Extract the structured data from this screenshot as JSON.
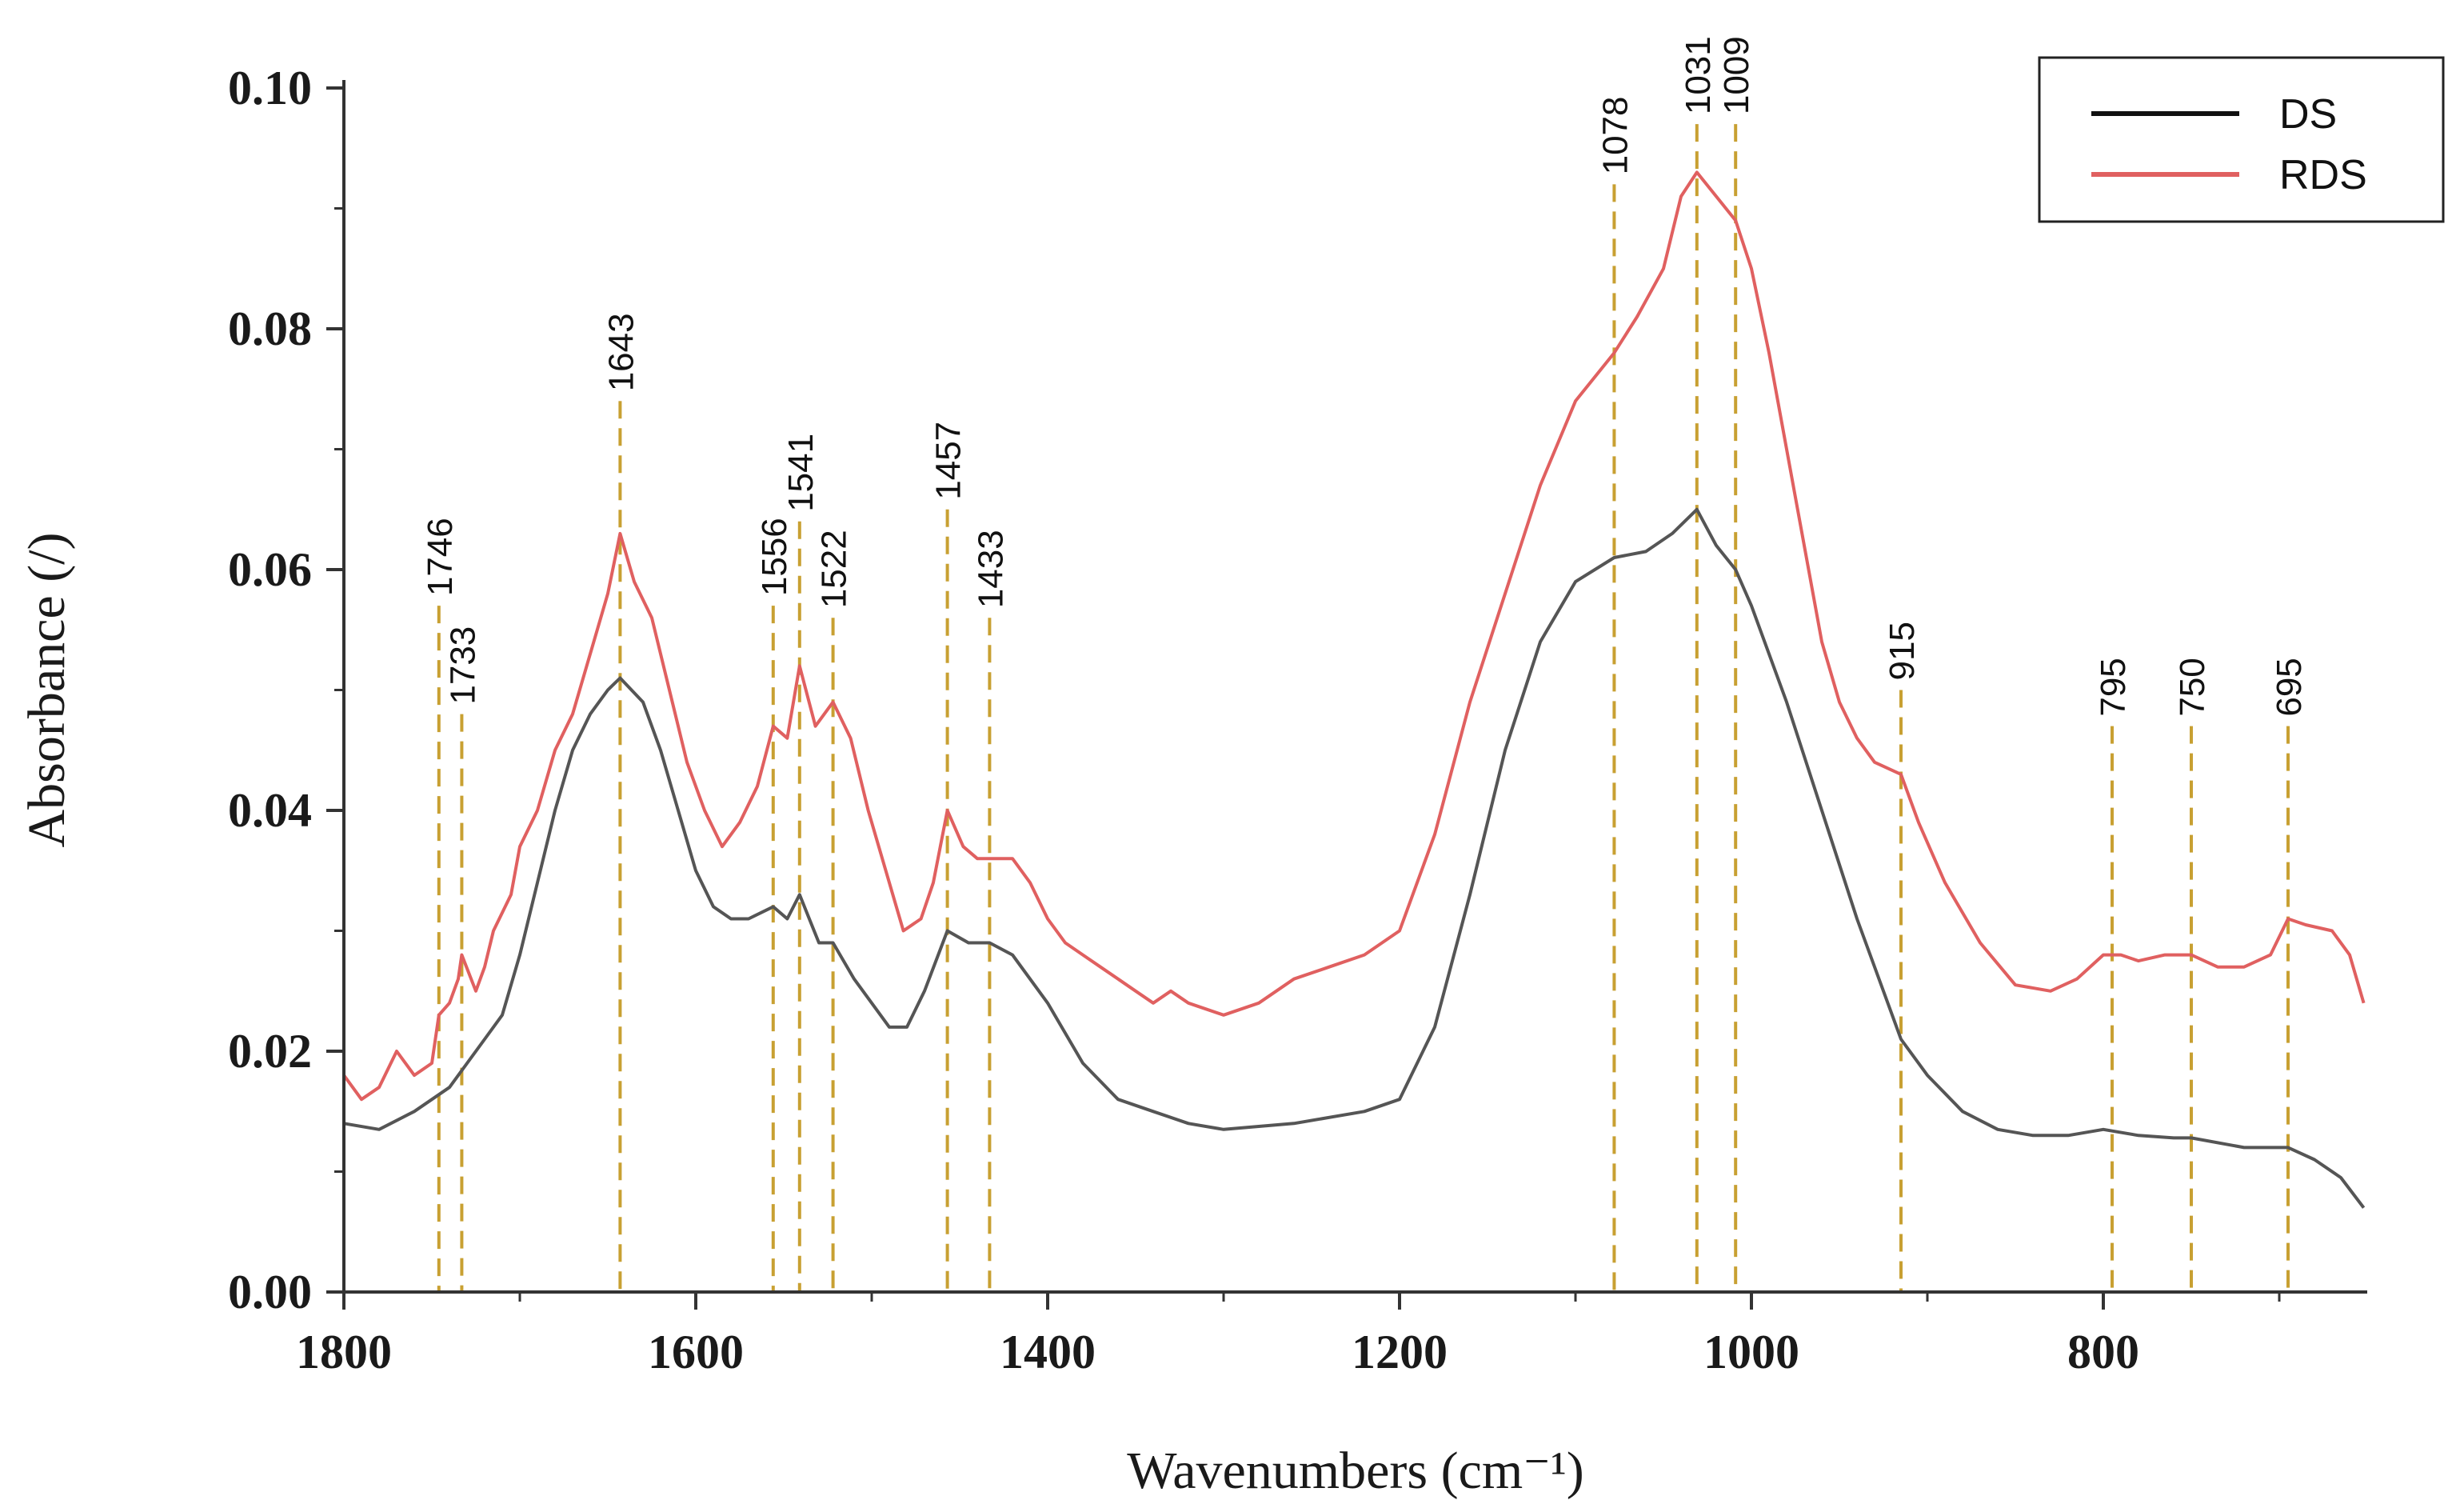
{
  "chart_data": {
    "type": "line",
    "title": "",
    "xlabel": "Wavenumbers (cm⁻¹)",
    "ylabel": "Absorbance (/)",
    "xlim": [
      1800,
      650
    ],
    "ylim": [
      0,
      0.1
    ],
    "x_ticks": [
      1800,
      1600,
      1400,
      1200,
      1000,
      800
    ],
    "x_tick_labels": [
      "1800",
      "1600",
      "1400",
      "1200",
      "1000",
      "800"
    ],
    "y_ticks": [
      0,
      0.02,
      0.04,
      0.06,
      0.08,
      0.1
    ],
    "y_tick_labels": [
      "0.00",
      "0.02",
      "0.04",
      "0.06",
      "0.08",
      "0.10"
    ],
    "legend_position": "top-right",
    "series": [
      {
        "name": "DS",
        "color": "#555555",
        "points": [
          [
            1800,
            0.014
          ],
          [
            1780,
            0.0135
          ],
          [
            1760,
            0.015
          ],
          [
            1740,
            0.017
          ],
          [
            1720,
            0.021
          ],
          [
            1710,
            0.023
          ],
          [
            1700,
            0.028
          ],
          [
            1690,
            0.034
          ],
          [
            1680,
            0.04
          ],
          [
            1670,
            0.045
          ],
          [
            1660,
            0.048
          ],
          [
            1650,
            0.05
          ],
          [
            1643,
            0.051
          ],
          [
            1630,
            0.049
          ],
          [
            1620,
            0.045
          ],
          [
            1610,
            0.04
          ],
          [
            1600,
            0.035
          ],
          [
            1590,
            0.032
          ],
          [
            1580,
            0.031
          ],
          [
            1570,
            0.031
          ],
          [
            1556,
            0.032
          ],
          [
            1548,
            0.031
          ],
          [
            1541,
            0.033
          ],
          [
            1530,
            0.029
          ],
          [
            1522,
            0.029
          ],
          [
            1510,
            0.026
          ],
          [
            1500,
            0.024
          ],
          [
            1490,
            0.022
          ],
          [
            1480,
            0.022
          ],
          [
            1470,
            0.025
          ],
          [
            1457,
            0.03
          ],
          [
            1445,
            0.029
          ],
          [
            1433,
            0.029
          ],
          [
            1420,
            0.028
          ],
          [
            1400,
            0.024
          ],
          [
            1380,
            0.019
          ],
          [
            1360,
            0.016
          ],
          [
            1340,
            0.015
          ],
          [
            1320,
            0.014
          ],
          [
            1300,
            0.0135
          ],
          [
            1260,
            0.014
          ],
          [
            1220,
            0.015
          ],
          [
            1200,
            0.016
          ],
          [
            1180,
            0.022
          ],
          [
            1160,
            0.033
          ],
          [
            1140,
            0.045
          ],
          [
            1120,
            0.054
          ],
          [
            1100,
            0.059
          ],
          [
            1078,
            0.061
          ],
          [
            1060,
            0.0615
          ],
          [
            1045,
            0.063
          ],
          [
            1031,
            0.065
          ],
          [
            1020,
            0.062
          ],
          [
            1009,
            0.06
          ],
          [
            1000,
            0.057
          ],
          [
            980,
            0.049
          ],
          [
            960,
            0.04
          ],
          [
            940,
            0.031
          ],
          [
            920,
            0.023
          ],
          [
            915,
            0.021
          ],
          [
            900,
            0.018
          ],
          [
            880,
            0.015
          ],
          [
            860,
            0.0135
          ],
          [
            840,
            0.013
          ],
          [
            820,
            0.013
          ],
          [
            800,
            0.0135
          ],
          [
            780,
            0.013
          ],
          [
            760,
            0.0128
          ],
          [
            750,
            0.0128
          ],
          [
            720,
            0.012
          ],
          [
            700,
            0.012
          ],
          [
            695,
            0.012
          ],
          [
            680,
            0.011
          ],
          [
            665,
            0.0095
          ],
          [
            652,
            0.007
          ]
        ]
      },
      {
        "name": "RDS",
        "color": "#e06060",
        "points": [
          [
            1800,
            0.018
          ],
          [
            1790,
            0.016
          ],
          [
            1780,
            0.017
          ],
          [
            1770,
            0.02
          ],
          [
            1760,
            0.018
          ],
          [
            1750,
            0.019
          ],
          [
            1746,
            0.023
          ],
          [
            1740,
            0.024
          ],
          [
            1735,
            0.026
          ],
          [
            1725,
            0.025
          ],
          [
            1720,
            0.027
          ],
          [
            1733,
            0.028
          ],
          [
            1715,
            0.03
          ],
          [
            1705,
            0.033
          ],
          [
            1700,
            0.037
          ],
          [
            1690,
            0.04
          ],
          [
            1680,
            0.045
          ],
          [
            1670,
            0.048
          ],
          [
            1660,
            0.053
          ],
          [
            1650,
            0.058
          ],
          [
            1643,
            0.063
          ],
          [
            1635,
            0.059
          ],
          [
            1625,
            0.056
          ],
          [
            1615,
            0.05
          ],
          [
            1605,
            0.044
          ],
          [
            1595,
            0.04
          ],
          [
            1585,
            0.037
          ],
          [
            1575,
            0.039
          ],
          [
            1565,
            0.042
          ],
          [
            1556,
            0.047
          ],
          [
            1548,
            0.046
          ],
          [
            1541,
            0.052
          ],
          [
            1532,
            0.047
          ],
          [
            1522,
            0.049
          ],
          [
            1512,
            0.046
          ],
          [
            1502,
            0.04
          ],
          [
            1492,
            0.035
          ],
          [
            1482,
            0.03
          ],
          [
            1472,
            0.031
          ],
          [
            1465,
            0.034
          ],
          [
            1457,
            0.04
          ],
          [
            1448,
            0.037
          ],
          [
            1440,
            0.036
          ],
          [
            1433,
            0.036
          ],
          [
            1420,
            0.036
          ],
          [
            1410,
            0.034
          ],
          [
            1400,
            0.031
          ],
          [
            1390,
            0.029
          ],
          [
            1380,
            0.028
          ],
          [
            1370,
            0.027
          ],
          [
            1360,
            0.026
          ],
          [
            1350,
            0.025
          ],
          [
            1340,
            0.024
          ],
          [
            1330,
            0.025
          ],
          [
            1320,
            0.024
          ],
          [
            1300,
            0.023
          ],
          [
            1280,
            0.024
          ],
          [
            1260,
            0.026
          ],
          [
            1240,
            0.027
          ],
          [
            1220,
            0.028
          ],
          [
            1200,
            0.03
          ],
          [
            1180,
            0.038
          ],
          [
            1160,
            0.049
          ],
          [
            1140,
            0.058
          ],
          [
            1120,
            0.067
          ],
          [
            1100,
            0.074
          ],
          [
            1078,
            0.078
          ],
          [
            1065,
            0.081
          ],
          [
            1050,
            0.085
          ],
          [
            1040,
            0.091
          ],
          [
            1031,
            0.093
          ],
          [
            1020,
            0.091
          ],
          [
            1009,
            0.089
          ],
          [
            1000,
            0.085
          ],
          [
            990,
            0.078
          ],
          [
            980,
            0.07
          ],
          [
            970,
            0.062
          ],
          [
            960,
            0.054
          ],
          [
            950,
            0.049
          ],
          [
            940,
            0.046
          ],
          [
            930,
            0.044
          ],
          [
            915,
            0.043
          ],
          [
            905,
            0.039
          ],
          [
            890,
            0.034
          ],
          [
            870,
            0.029
          ],
          [
            850,
            0.0255
          ],
          [
            830,
            0.025
          ],
          [
            815,
            0.026
          ],
          [
            800,
            0.028
          ],
          [
            790,
            0.028
          ],
          [
            780,
            0.0275
          ],
          [
            765,
            0.028
          ],
          [
            750,
            0.028
          ],
          [
            735,
            0.027
          ],
          [
            720,
            0.027
          ],
          [
            705,
            0.028
          ],
          [
            695,
            0.031
          ],
          [
            685,
            0.0305
          ],
          [
            670,
            0.03
          ],
          [
            660,
            0.028
          ],
          [
            652,
            0.024
          ]
        ]
      }
    ],
    "peak_markers": [
      {
        "x": 1746,
        "label": "1746",
        "top": 0.057
      },
      {
        "x": 1733,
        "label": "1733",
        "top": 0.048
      },
      {
        "x": 1643,
        "label": "1643",
        "top": 0.074
      },
      {
        "x": 1556,
        "label": "1556",
        "top": 0.057
      },
      {
        "x": 1541,
        "label": "1541",
        "top": 0.064
      },
      {
        "x": 1522,
        "label": "1522",
        "top": 0.056
      },
      {
        "x": 1457,
        "label": "1457",
        "top": 0.065
      },
      {
        "x": 1433,
        "label": "1433",
        "top": 0.056
      },
      {
        "x": 1078,
        "label": "1078",
        "top": 0.092
      },
      {
        "x": 1031,
        "label": "1031",
        "top": 0.097
      },
      {
        "x": 1009,
        "label": "1009",
        "top": 0.097
      },
      {
        "x": 915,
        "label": "915",
        "top": 0.05
      },
      {
        "x": 795,
        "label": "795",
        "top": 0.047
      },
      {
        "x": 750,
        "label": "750",
        "top": 0.047
      },
      {
        "x": 695,
        "label": "695",
        "top": 0.047
      }
    ],
    "marker_color": "#c8a032"
  }
}
